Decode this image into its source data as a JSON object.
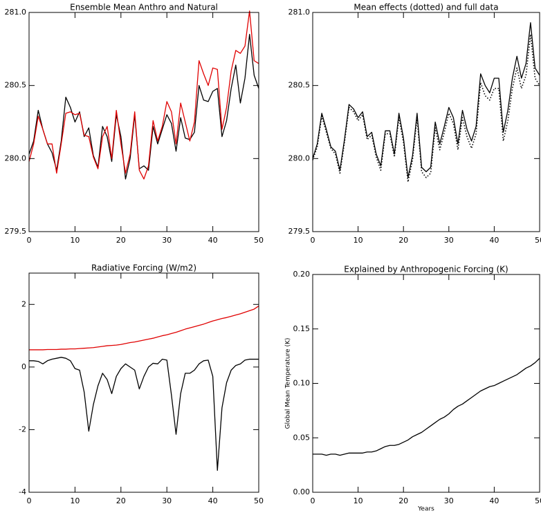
{
  "chart_data": [
    {
      "type": "line",
      "title": "Ensemble Mean Anthro and Natural",
      "x": [
        0,
        1,
        2,
        3,
        4,
        5,
        6,
        7,
        8,
        9,
        10,
        11,
        12,
        13,
        14,
        15,
        16,
        17,
        18,
        19,
        20,
        21,
        22,
        23,
        24,
        25,
        26,
        27,
        28,
        29,
        30,
        31,
        32,
        33,
        34,
        35,
        36,
        37,
        38,
        39,
        40,
        41,
        42,
        43,
        44,
        45,
        46,
        47,
        48,
        49,
        50
      ],
      "xlim": [
        0,
        50
      ],
      "xticks": [
        0,
        10,
        20,
        30,
        40,
        50
      ],
      "ylim": [
        279.5,
        281
      ],
      "yticks": [
        {
          "value": 279.5,
          "label": "279.5"
        },
        {
          "value": 280,
          "label": "280.0"
        },
        280.5,
        {
          "value": 281,
          "label": "281.0"
        }
      ],
      "series": [
        {
          "color": "#000000",
          "linestyle": "solid",
          "values": [
            280.03,
            280.12,
            280.33,
            280.2,
            280.1,
            280.04,
            279.92,
            280.12,
            280.42,
            280.35,
            280.25,
            280.32,
            280.15,
            280.21,
            280.02,
            279.94,
            280.22,
            280.15,
            279.98,
            280.3,
            280.15,
            279.86,
            280.0,
            280.3,
            279.93,
            279.95,
            279.92,
            280.22,
            280.1,
            280.2,
            280.3,
            280.24,
            280.05,
            280.28,
            280.14,
            280.13,
            280.18,
            280.5,
            280.4,
            280.39,
            280.46,
            280.48,
            280.15,
            280.26,
            280.48,
            280.64,
            280.38,
            280.55,
            280.85,
            280.57,
            280.48
          ]
        },
        {
          "color": "#e00000",
          "linestyle": "solid",
          "values": [
            279.98,
            280.1,
            280.29,
            280.2,
            280.1,
            280.1,
            279.9,
            280.1,
            280.31,
            280.32,
            280.3,
            280.31,
            280.16,
            280.15,
            280.01,
            279.93,
            280.15,
            280.22,
            280.0,
            280.33,
            280.1,
            279.9,
            280.03,
            280.32,
            279.92,
            279.86,
            279.95,
            280.26,
            280.12,
            280.22,
            280.39,
            280.32,
            280.1,
            280.38,
            280.25,
            280.12,
            280.25,
            280.67,
            280.58,
            280.5,
            280.62,
            280.61,
            280.2,
            280.35,
            280.6,
            280.74,
            280.72,
            280.77,
            281.01,
            280.67,
            280.65
          ]
        }
      ]
    },
    {
      "type": "line",
      "title": "Mean effects (dotted) and full data",
      "x": [
        0,
        1,
        2,
        3,
        4,
        5,
        6,
        7,
        8,
        9,
        10,
        11,
        12,
        13,
        14,
        15,
        16,
        17,
        18,
        19,
        20,
        21,
        22,
        23,
        24,
        25,
        26,
        27,
        28,
        29,
        30,
        31,
        32,
        33,
        34,
        35,
        36,
        37,
        38,
        39,
        40,
        41,
        42,
        43,
        44,
        45,
        46,
        47,
        48,
        49,
        50
      ],
      "xlim": [
        0,
        50
      ],
      "xticks": [
        0,
        10,
        20,
        30,
        40,
        50
      ],
      "ylim": [
        279.5,
        281
      ],
      "yticks": [
        {
          "value": 279.5,
          "label": "279.5"
        },
        {
          "value": 280,
          "label": "280.0"
        },
        280.5,
        {
          "value": 281,
          "label": "281.0"
        }
      ],
      "series": [
        {
          "color": "#000000",
          "linestyle": "solid",
          "values": [
            280.0,
            280.1,
            280.31,
            280.2,
            280.08,
            280.05,
            279.92,
            280.13,
            280.37,
            280.34,
            280.28,
            280.32,
            280.15,
            280.18,
            280.03,
            279.95,
            280.19,
            280.19,
            280.03,
            280.31,
            280.14,
            279.87,
            280.02,
            280.31,
            279.94,
            279.91,
            279.94,
            280.25,
            280.1,
            280.22,
            280.35,
            280.28,
            280.1,
            280.33,
            280.2,
            280.12,
            280.22,
            280.58,
            280.5,
            280.45,
            280.55,
            280.55,
            280.18,
            280.33,
            280.55,
            280.7,
            280.55,
            280.65,
            280.93,
            280.62,
            280.57
          ]
        },
        {
          "color": "#000000",
          "linestyle": "dotted",
          "values": [
            279.99,
            280.08,
            280.29,
            280.18,
            280.07,
            280.03,
            279.9,
            280.11,
            280.35,
            280.32,
            280.26,
            280.3,
            280.13,
            280.16,
            280.01,
            279.92,
            280.17,
            280.17,
            280.01,
            280.28,
            280.11,
            279.84,
            279.99,
            280.28,
            279.91,
            279.87,
            279.9,
            280.21,
            280.06,
            280.18,
            280.31,
            280.24,
            280.06,
            280.28,
            280.15,
            280.07,
            280.17,
            280.52,
            280.43,
            280.4,
            280.48,
            280.48,
            280.12,
            280.26,
            280.48,
            280.62,
            280.48,
            280.57,
            280.85,
            280.55,
            280.5
          ]
        }
      ]
    },
    {
      "type": "line",
      "title": "Radiative Forcing (W/m2)",
      "x": [
        0,
        1,
        2,
        3,
        4,
        5,
        6,
        7,
        8,
        9,
        10,
        11,
        12,
        13,
        14,
        15,
        16,
        17,
        18,
        19,
        20,
        21,
        22,
        23,
        24,
        25,
        26,
        27,
        28,
        29,
        30,
        31,
        32,
        33,
        34,
        35,
        36,
        37,
        38,
        39,
        40,
        41,
        42,
        43,
        44,
        45,
        46,
        47,
        48,
        49,
        50
      ],
      "xlim": [
        0,
        50
      ],
      "xticks": [
        0,
        10,
        20,
        30,
        40,
        50
      ],
      "ylim": [
        -4,
        3
      ],
      "yticks": [
        -4,
        -2,
        0,
        2
      ],
      "series": [
        {
          "color": "#e00000",
          "linestyle": "solid",
          "values": [
            0.55,
            0.55,
            0.55,
            0.55,
            0.56,
            0.56,
            0.56,
            0.57,
            0.57,
            0.58,
            0.58,
            0.59,
            0.6,
            0.61,
            0.62,
            0.64,
            0.66,
            0.68,
            0.69,
            0.7,
            0.72,
            0.75,
            0.78,
            0.8,
            0.83,
            0.86,
            0.89,
            0.92,
            0.96,
            1.0,
            1.03,
            1.07,
            1.11,
            1.16,
            1.21,
            1.25,
            1.29,
            1.33,
            1.37,
            1.42,
            1.47,
            1.51,
            1.55,
            1.58,
            1.62,
            1.66,
            1.7,
            1.75,
            1.8,
            1.85,
            1.95
          ]
        },
        {
          "color": "#000000",
          "linestyle": "solid",
          "values": [
            0.2,
            0.2,
            0.18,
            0.1,
            0.2,
            0.25,
            0.28,
            0.31,
            0.28,
            0.2,
            -0.05,
            -0.1,
            -0.8,
            -2.05,
            -1.2,
            -0.6,
            -0.2,
            -0.4,
            -0.85,
            -0.3,
            -0.05,
            0.1,
            0.0,
            -0.1,
            -0.7,
            -0.3,
            0.0,
            0.12,
            0.1,
            0.25,
            0.22,
            -0.9,
            -2.15,
            -0.85,
            -0.2,
            -0.2,
            -0.1,
            0.1,
            0.2,
            0.22,
            -0.3,
            -3.3,
            -1.3,
            -0.5,
            -0.1,
            0.05,
            0.1,
            0.22,
            0.25,
            0.25,
            0.25
          ]
        }
      ]
    },
    {
      "type": "line",
      "title": "Explained by Anthropogenic Forcing (K)",
      "xlabel": "Years",
      "ylabel": "Global Mean Temperature (K)",
      "x": [
        0,
        1,
        2,
        3,
        4,
        5,
        6,
        7,
        8,
        9,
        10,
        11,
        12,
        13,
        14,
        15,
        16,
        17,
        18,
        19,
        20,
        21,
        22,
        23,
        24,
        25,
        26,
        27,
        28,
        29,
        30,
        31,
        32,
        33,
        34,
        35,
        36,
        37,
        38,
        39,
        40,
        41,
        42,
        43,
        44,
        45,
        46,
        47,
        48,
        49,
        50
      ],
      "xlim": [
        0,
        50
      ],
      "xticks": [
        0,
        10,
        20,
        30,
        40,
        50
      ],
      "ylim": [
        0,
        0.2
      ],
      "yticks": [
        {
          "value": 0,
          "label": "0.00"
        },
        0.05,
        {
          "value": 0.1,
          "label": "0.10"
        },
        0.15,
        {
          "value": 0.2,
          "label": "0.20"
        }
      ],
      "series": [
        {
          "color": "#000000",
          "linestyle": "solid",
          "values": [
            0.035,
            0.035,
            0.035,
            0.034,
            0.035,
            0.035,
            0.034,
            0.035,
            0.036,
            0.036,
            0.036,
            0.036,
            0.037,
            0.037,
            0.038,
            0.04,
            0.042,
            0.043,
            0.043,
            0.044,
            0.046,
            0.048,
            0.051,
            0.053,
            0.055,
            0.058,
            0.061,
            0.064,
            0.067,
            0.069,
            0.072,
            0.076,
            0.079,
            0.081,
            0.084,
            0.087,
            0.09,
            0.093,
            0.095,
            0.097,
            0.098,
            0.1,
            0.102,
            0.104,
            0.106,
            0.108,
            0.111,
            0.114,
            0.116,
            0.119,
            0.123
          ]
        }
      ]
    }
  ]
}
